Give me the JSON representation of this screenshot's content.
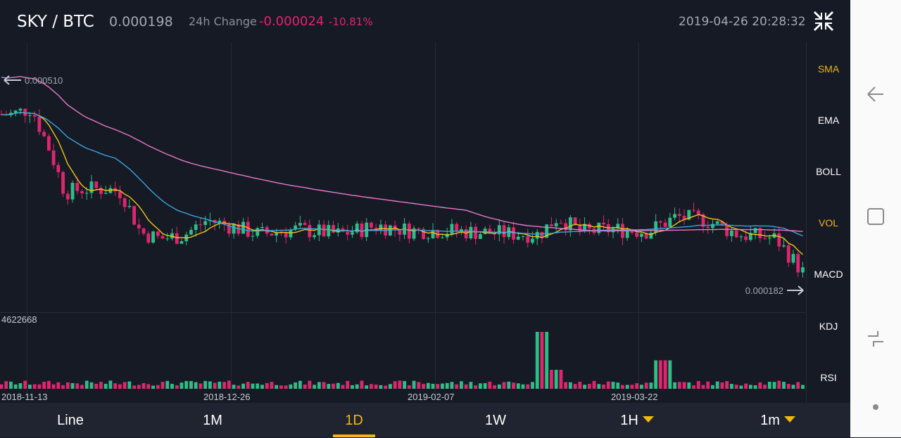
{
  "header": {
    "pair": "SKY / BTC",
    "price": "0.000198",
    "change_label": "24h Change",
    "change_value": "-0.000024",
    "change_percent": "-10.81%",
    "datetime": "2019-04-26 20:28:32",
    "collapse_icon": "collapse-arrows-icon"
  },
  "colors": {
    "up": "#2ebd85",
    "down": "#e0246e",
    "accent": "#f0b90b",
    "ma_short": "#f0c419",
    "ma_mid": "#3aa6e0",
    "ma_long": "#e879c8"
  },
  "chart_data": {
    "type": "candlestick",
    "pair": "SKY/BTC",
    "interval": "1D",
    "x_tick_labels": [
      "2018-11-13",
      "2018-12-26",
      "2019-02-07",
      "2019-03-22"
    ],
    "price_max_marker": "0.000510",
    "price_min_marker": "0.000182",
    "price_range": [
      0.000182,
      0.00051
    ],
    "volume_max_label": "4622668",
    "volume_max": 4622668,
    "grid": true,
    "series": [
      {
        "key": "short_ma",
        "color": "#f0c419"
      },
      {
        "key": "mid_ma",
        "color": "#3aa6e0"
      },
      {
        "key": "long_ma",
        "color": "#e879c8"
      }
    ],
    "close_trend": [
      {
        "date": "2018-11-10",
        "price": 0.000455
      },
      {
        "date": "2018-11-14",
        "price": 0.000465
      },
      {
        "date": "2018-11-18",
        "price": 0.000395
      },
      {
        "date": "2018-11-21",
        "price": 0.00033
      },
      {
        "date": "2018-11-25",
        "price": 0.000335
      },
      {
        "date": "2018-11-30",
        "price": 0.000335
      },
      {
        "date": "2018-12-03",
        "price": 0.00033
      },
      {
        "date": "2018-12-07",
        "price": 0.000265
      },
      {
        "date": "2018-12-11",
        "price": 0.000255
      },
      {
        "date": "2018-12-16",
        "price": 0.00026
      },
      {
        "date": "2018-12-21",
        "price": 0.000285
      },
      {
        "date": "2018-12-26",
        "price": 0.000275
      },
      {
        "date": "2019-01-01",
        "price": 0.000262
      },
      {
        "date": "2019-01-09",
        "price": 0.00027
      },
      {
        "date": "2019-01-18",
        "price": 0.000262
      },
      {
        "date": "2019-01-26",
        "price": 0.000276
      },
      {
        "date": "2019-02-02",
        "price": 0.000268
      },
      {
        "date": "2019-02-10",
        "price": 0.000268
      },
      {
        "date": "2019-02-22",
        "price": 0.000263
      },
      {
        "date": "2019-03-01",
        "price": 0.000262
      },
      {
        "date": "2019-03-05",
        "price": 0.00029
      },
      {
        "date": "2019-03-10",
        "price": 0.000265
      },
      {
        "date": "2019-03-16",
        "price": 0.00027
      },
      {
        "date": "2019-03-24",
        "price": 0.000267
      },
      {
        "date": "2019-03-30",
        "price": 0.00029
      },
      {
        "date": "2019-04-05",
        "price": 0.000285
      },
      {
        "date": "2019-04-12",
        "price": 0.000262
      },
      {
        "date": "2019-04-20",
        "price": 0.000255
      },
      {
        "date": "2019-04-26",
        "price": 0.000198
      }
    ]
  },
  "indicators": [
    {
      "label": "SMA",
      "active": true
    },
    {
      "label": "EMA",
      "active": false
    },
    {
      "label": "BOLL",
      "active": false
    },
    {
      "label": "VOL",
      "active": true
    },
    {
      "label": "MACD",
      "active": false
    },
    {
      "label": "KDJ",
      "active": false
    },
    {
      "label": "RSI",
      "active": false
    }
  ],
  "timeframes": [
    {
      "label": "Line",
      "active": false,
      "dropdown": false
    },
    {
      "label": "1M",
      "active": false,
      "dropdown": false
    },
    {
      "label": "1D",
      "active": true,
      "dropdown": false
    },
    {
      "label": "1W",
      "active": false,
      "dropdown": false
    },
    {
      "label": "1H",
      "active": false,
      "dropdown": true
    },
    {
      "label": "1m",
      "active": false,
      "dropdown": true
    }
  ],
  "navbar": {
    "back_icon": "back-arrow-icon",
    "home_icon": "home-square-icon",
    "recents_icon": "recents-icon",
    "menu_icon": "dot-icon"
  }
}
